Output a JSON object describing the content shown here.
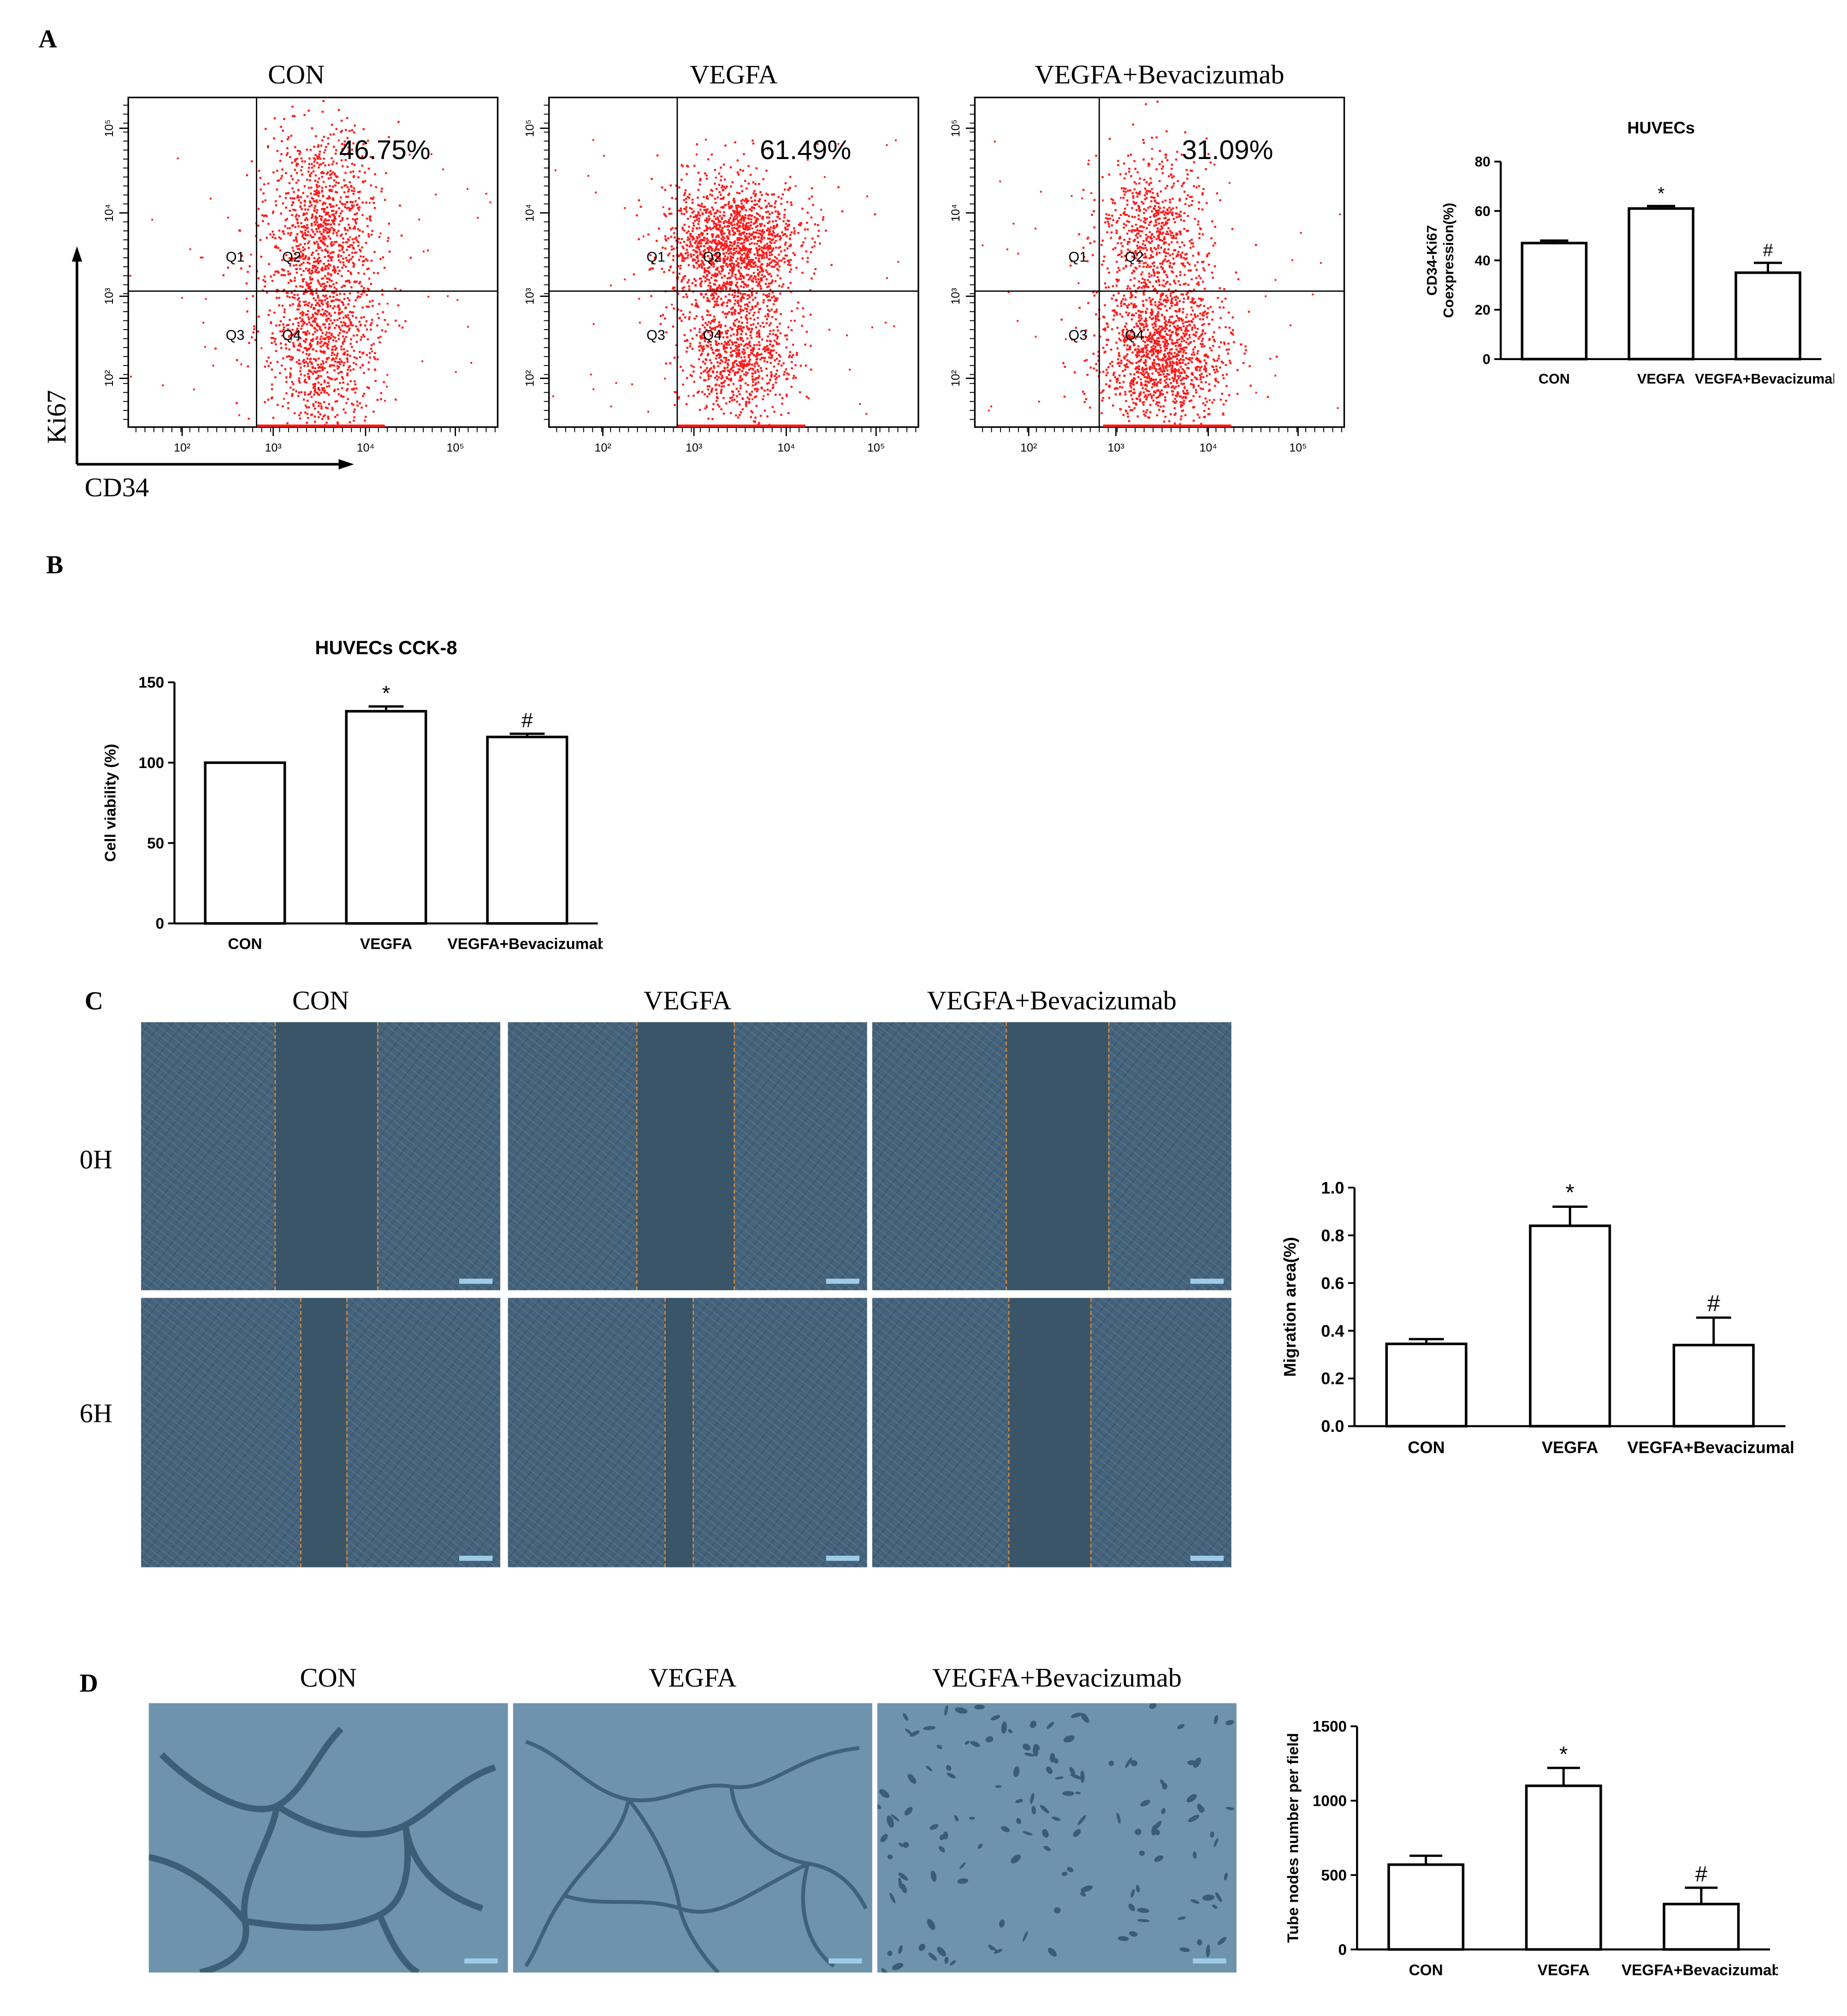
{
  "panels": {
    "a": "A",
    "b": "B",
    "c": "C",
    "d": "D"
  },
  "flow": {
    "titles": [
      "CON",
      "VEGFA",
      "VEGFA+Bevacizumab"
    ],
    "percents": [
      "46.75%",
      "61.49%",
      "31.09%"
    ],
    "quadrants": [
      "Q1",
      "Q2",
      "Q3",
      "Q4"
    ],
    "x_label": "CD34",
    "y_label": "Ki67",
    "x_ticks": [
      "10²",
      "10³",
      "10⁴",
      "10⁵"
    ],
    "y_ticks": [
      "10²",
      "10³",
      "10⁴",
      "10⁵"
    ]
  },
  "scratch": {
    "titles": [
      "CON",
      "VEGFA",
      "VEGFA+Bevacizumab"
    ],
    "rows": [
      "0H",
      "6H"
    ]
  },
  "tube": {
    "titles": [
      "CON",
      "VEGFA",
      "VEGFA+Bevacizumab"
    ]
  },
  "colors": {
    "dot": "#ff1a1a",
    "bar_fill": "#ffffff",
    "line": "#000000"
  },
  "chart_data": [
    {
      "id": "huvecs_flow",
      "type": "bar",
      "title": "HUVECs",
      "ylabel_lines": [
        "CD34-Ki67",
        "Coexpression(%)"
      ],
      "xlabel": "",
      "categories": [
        "CON",
        "VEGFA",
        "VEGFA+Bevacizumab"
      ],
      "values": [
        47,
        61,
        35
      ],
      "errors": [
        1,
        1,
        4
      ],
      "annotations": [
        "",
        "*",
        "#"
      ],
      "ylim": [
        0,
        80
      ],
      "yticks": [
        0,
        20,
        40,
        60,
        80
      ],
      "ytick_labels": [
        "0",
        "20",
        "40",
        "60",
        "80"
      ]
    },
    {
      "id": "cck8",
      "type": "bar",
      "title": "HUVECs CCK-8",
      "ylabel_lines": [
        "Cell viability (%)"
      ],
      "xlabel": "",
      "categories": [
        "CON",
        "VEGFA",
        "VEGFA+Bevacizumab"
      ],
      "values": [
        100,
        132,
        116
      ],
      "errors": [
        0,
        3,
        2
      ],
      "annotations": [
        "",
        "*",
        "#"
      ],
      "ylim": [
        0,
        150
      ],
      "yticks": [
        0,
        50,
        100,
        150
      ],
      "ytick_labels": [
        "0",
        "50",
        "100",
        "150"
      ]
    },
    {
      "id": "migration",
      "type": "bar",
      "title": "",
      "ylabel_lines": [
        "Migration area(%)"
      ],
      "xlabel": "",
      "categories": [
        "CON",
        "VEGFA",
        "VEGFA+Bevacizumab"
      ],
      "values": [
        0.345,
        0.84,
        0.34
      ],
      "errors": [
        0.02,
        0.08,
        0.115
      ],
      "annotations": [
        "",
        "*",
        "#"
      ],
      "ylim": [
        0,
        1.0
      ],
      "yticks": [
        0,
        0.2,
        0.4,
        0.6,
        0.8,
        1.0
      ],
      "ytick_labels": [
        "0.0",
        "0.2",
        "0.4",
        "0.6",
        "0.8",
        "1.0"
      ]
    },
    {
      "id": "tube_nodes",
      "type": "bar",
      "title": "",
      "ylabel_lines": [
        "Tube nodes number per field"
      ],
      "xlabel": "",
      "categories": [
        "CON",
        "VEGFA",
        "VEGFA+Bevacizumab"
      ],
      "values": [
        570,
        1100,
        305
      ],
      "errors": [
        60,
        120,
        110
      ],
      "annotations": [
        "",
        "*",
        "#"
      ],
      "ylim": [
        0,
        1500
      ],
      "yticks": [
        0,
        500,
        1000,
        1500
      ],
      "ytick_labels": [
        "0",
        "500",
        "1000",
        "1500"
      ]
    }
  ]
}
